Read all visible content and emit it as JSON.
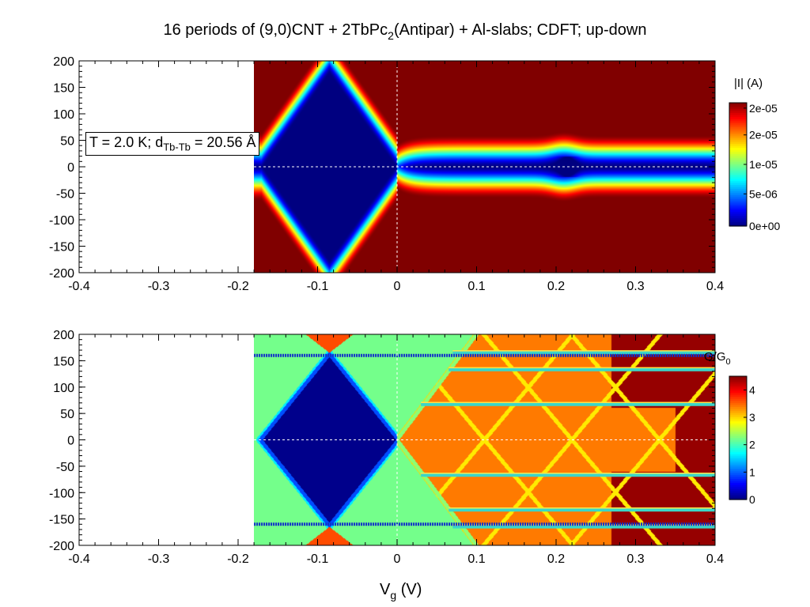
{
  "title": {
    "prefix": "16 periods of (9,0)CNT + 2TbPc",
    "sub": "2",
    "suffix": "(Antipar) + Al-slabs; CDFT; up-down"
  },
  "annotation": {
    "prefix": "T = 2.0 K; d",
    "sub": "Tb-Tb",
    "suffix": " = 20.56 Å"
  },
  "chart_data": [
    {
      "type": "heatmap",
      "name": "current",
      "xlim": [
        -0.4,
        0.4
      ],
      "ylim": [
        -200,
        200
      ],
      "x_ticks": [
        "-0.4",
        "-0.3",
        "-0.2",
        "-0.1",
        "0",
        "0.1",
        "0.2",
        "0.3",
        "0.4"
      ],
      "y_ticks": [
        "200",
        "150",
        "100",
        "50",
        "0",
        "-50",
        "-100",
        "-150",
        "-200"
      ],
      "colorbar": {
        "label": "|I| (A)",
        "range": [
          0,
          2.3e-05
        ],
        "ticks": [
          "2e-05",
          "2e-05",
          "1e-05",
          "5e-06",
          "0e+00"
        ]
      },
      "data_region_x": [
        -0.18,
        0.4
      ],
      "features": {
        "diamond": {
          "center_x": -0.085,
          "half_width": 0.0855,
          "half_height": 180
        },
        "gap_band": {
          "x_start": 0.0,
          "half_height_at_start": 22,
          "half_height_right": 38,
          "bump_x": 0.21,
          "bump_half_height": 45
        }
      },
      "reference_lines": {
        "x": 0,
        "y": 0
      },
      "grid": false
    },
    {
      "type": "heatmap",
      "name": "conductance",
      "xlim": [
        -0.4,
        0.4
      ],
      "ylim": [
        -200,
        200
      ],
      "x_ticks": [
        "-0.4",
        "-0.3",
        "-0.2",
        "-0.1",
        "0",
        "0.1",
        "0.2",
        "0.3",
        "0.4"
      ],
      "y_ticks": [
        "200",
        "150",
        "100",
        "50",
        "0",
        "-50",
        "-100",
        "-150",
        "-200"
      ],
      "xlabel": {
        "main": "V",
        "sub": "g",
        "suffix": "  (V)"
      },
      "colorbar": {
        "label": {
          "main": "G/G",
          "sub": "0"
        },
        "range": [
          0,
          4.5
        ],
        "ticks": [
          "4",
          "3",
          "2",
          "1",
          "0"
        ]
      },
      "data_region_x": [
        -0.18,
        0.4
      ],
      "features": {
        "diamond": {
          "center_x": -0.085,
          "half_width": 0.0855,
          "half_height": 160
        },
        "background_level": 2.2,
        "high_region_level": 3.4,
        "dark_region_level": 4.4,
        "noisy_lines_y": [
          160,
          -160
        ],
        "stripes": [
          {
            "y": 165,
            "x_start": 0.07
          },
          {
            "y": 133,
            "x_start": 0.065
          },
          {
            "y": 67,
            "x_start": 0.03
          },
          {
            "y": -67,
            "x_start": 0.03
          },
          {
            "y": -133,
            "x_start": 0.065
          },
          {
            "y": -165,
            "x_start": 0.07
          }
        ]
      },
      "reference_lines": {
        "x": 0,
        "y": 0
      },
      "grid": false
    }
  ]
}
